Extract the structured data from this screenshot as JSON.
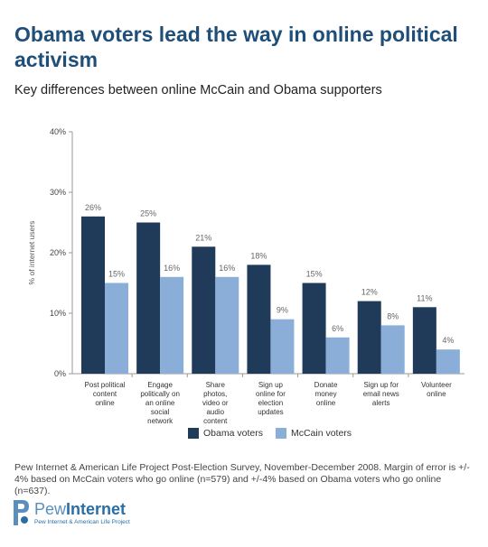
{
  "title": "Obama voters lead the way in online political activism",
  "subtitle": "Key differences between online McCain and Obama supporters",
  "chart_data": {
    "type": "bar",
    "categories": [
      [
        "Post political",
        "content",
        "online"
      ],
      [
        "Engage",
        "politically on",
        "an online",
        "social",
        "network"
      ],
      [
        "Share",
        "photos,",
        "video or",
        "audio",
        "content"
      ],
      [
        "Sign up",
        "online for",
        "election",
        "updates"
      ],
      [
        "Donate",
        "money",
        "online"
      ],
      [
        "Sign up for",
        "email news",
        "alerts"
      ],
      [
        "Volunteer",
        "online"
      ]
    ],
    "series": [
      {
        "name": "Obama voters",
        "color": "#203a5a",
        "values": [
          26,
          25,
          21,
          18,
          15,
          12,
          11
        ],
        "labels": [
          "26%",
          "25%",
          "21%",
          "18%",
          "15%",
          "12%",
          "11%"
        ]
      },
      {
        "name": "McCain voters",
        "color": "#8aaed8",
        "values": [
          15,
          16,
          16,
          9,
          6,
          8,
          4
        ],
        "labels": [
          "15%",
          "16%",
          "16%",
          "9%",
          "6%",
          "8%",
          "4%"
        ]
      }
    ],
    "ylabel": "% of internet users",
    "ylim": [
      0,
      40
    ],
    "yticks": [
      "0%",
      "10%",
      "20%",
      "30%",
      "40%"
    ],
    "grid": false,
    "legend": "bottom"
  },
  "source": "Pew Internet & American Life Project Post-Election Survey, November-December 2008. Margin of error is +/- 4% based on McCain voters who go online (n=579) and +/-4% based on Obama voters who go online (n=637).",
  "logo": {
    "word_light": "Pew",
    "word_bold": "Internet",
    "tagline": "Pew Internet & American Life Project"
  }
}
